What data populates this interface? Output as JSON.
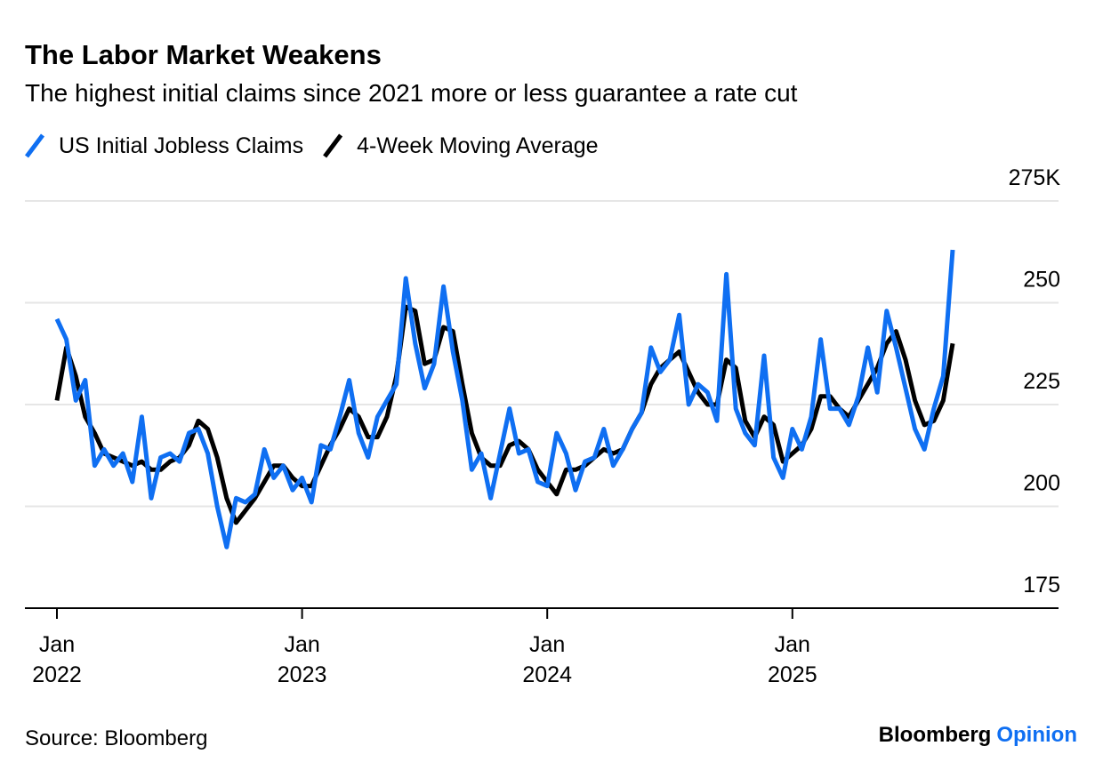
{
  "chart_data": {
    "type": "line",
    "title": "The Labor Market Weakens",
    "subtitle": "The highest initial claims since 2021 more or less guarantee a rate cut",
    "source": "Source: Bloomberg",
    "brand": {
      "name": "Bloomberg",
      "suffix": "Opinion"
    },
    "categories": [
      [
        "Jan",
        "2022"
      ],
      null,
      null,
      null,
      null,
      null,
      null,
      null,
      null,
      null,
      null,
      null,
      null,
      null,
      null,
      null,
      null,
      null,
      null,
      null,
      null,
      null,
      null,
      null,
      null,
      null,
      [
        "Jan",
        "2023"
      ],
      null,
      null,
      null,
      null,
      null,
      null,
      null,
      null,
      null,
      null,
      null,
      null,
      null,
      null,
      null,
      null,
      null,
      null,
      null,
      null,
      null,
      null,
      null,
      null,
      null,
      [
        "Jan",
        "2024"
      ],
      null,
      null,
      null,
      null,
      null,
      null,
      null,
      null,
      null,
      null,
      null,
      null,
      null,
      null,
      null,
      null,
      null,
      null,
      null,
      null,
      null,
      null,
      null,
      null,
      null,
      [
        "Jan",
        "2025"
      ],
      null,
      null,
      null,
      null,
      null,
      null,
      null,
      null,
      null,
      null,
      null,
      null,
      null,
      null,
      null,
      null,
      null
    ],
    "series": [
      {
        "name": "US Initial Jobless Claims",
        "color": "#0f6ff2",
        "values": [
          246,
          241,
          226,
          231,
          210,
          214,
          210,
          213,
          206,
          222,
          202,
          212,
          213,
          211,
          218,
          219,
          213,
          200,
          190,
          202,
          201,
          203,
          214,
          207,
          210,
          204,
          207,
          201,
          215,
          214,
          222,
          231,
          218,
          212,
          222,
          226,
          230,
          256,
          240,
          229,
          235,
          254,
          238,
          226,
          209,
          213,
          202,
          213,
          224,
          213,
          214,
          206,
          205,
          218,
          213,
          204,
          211,
          212,
          219,
          210,
          214,
          219,
          223,
          239,
          233,
          236,
          247,
          225,
          230,
          228,
          221,
          257,
          224,
          218,
          215,
          237,
          212,
          207,
          219,
          214,
          222,
          241,
          224,
          224,
          220,
          227,
          239,
          228,
          248,
          239,
          229,
          219,
          214,
          224,
          232,
          263
        ]
      },
      {
        "name": "4-Week Moving Average",
        "color": "#000000",
        "values": [
          226,
          239,
          232,
          222,
          218,
          213,
          212,
          211,
          210,
          211,
          209,
          209,
          211,
          212,
          215,
          221,
          219,
          212,
          202,
          196,
          199,
          202,
          206,
          210,
          210,
          207,
          205,
          205,
          210,
          215,
          219,
          224,
          222,
          217,
          217,
          222,
          232,
          249,
          248,
          235,
          236,
          244,
          243,
          230,
          218,
          212,
          210,
          210,
          215,
          216,
          214,
          209,
          206,
          203,
          209,
          209,
          210,
          212,
          214,
          213,
          214,
          219,
          223,
          230,
          234,
          236,
          238,
          233,
          228,
          225,
          225,
          236,
          234,
          221,
          217,
          222,
          220,
          211,
          213,
          215,
          219,
          227,
          227,
          224,
          222,
          226,
          230,
          234,
          240,
          243,
          236,
          226,
          220,
          221,
          226,
          240
        ]
      }
    ],
    "ylim": [
      175,
      275
    ],
    "yticks": [
      175,
      200,
      225,
      250,
      {
        "value": 275,
        "label": "275K"
      }
    ],
    "grid": true
  }
}
